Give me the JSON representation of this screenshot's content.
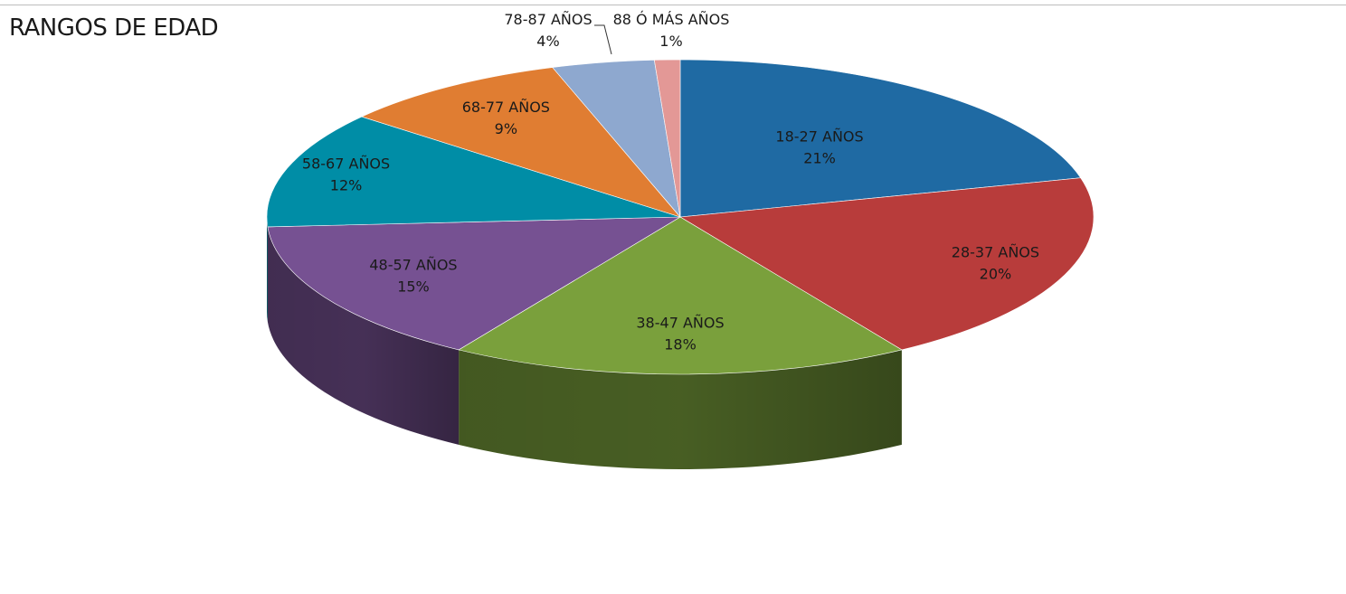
{
  "chart_data": {
    "type": "pie",
    "title": "RANGOS DE EDAD",
    "slices": [
      {
        "label": "18-27 AÑOS",
        "value": 21,
        "value_label": "21%",
        "color": "#1f6aa3"
      },
      {
        "label": "28-37 AÑOS",
        "value": 20,
        "value_label": "20%",
        "color": "#b83c3b"
      },
      {
        "label": "38-47 AÑOS",
        "value": 18,
        "value_label": "18%",
        "color": "#7aa03c"
      },
      {
        "label": "48-57 AÑOS",
        "value": 15,
        "value_label": "15%",
        "color": "#765192"
      },
      {
        "label": "58-67 AÑOS",
        "value": 12,
        "value_label": "12%",
        "color": "#008da6"
      },
      {
        "label": "68-77 AÑOS",
        "value": 9,
        "value_label": "9%",
        "color": "#e07d32"
      },
      {
        "label": "78-87 AÑOS",
        "value": 4,
        "value_label": "4%",
        "color": "#8ea8cf"
      },
      {
        "label": "88 Ó MÁS AÑOS",
        "value": 1,
        "value_label": "1%",
        "color": "#e39896"
      }
    ]
  }
}
